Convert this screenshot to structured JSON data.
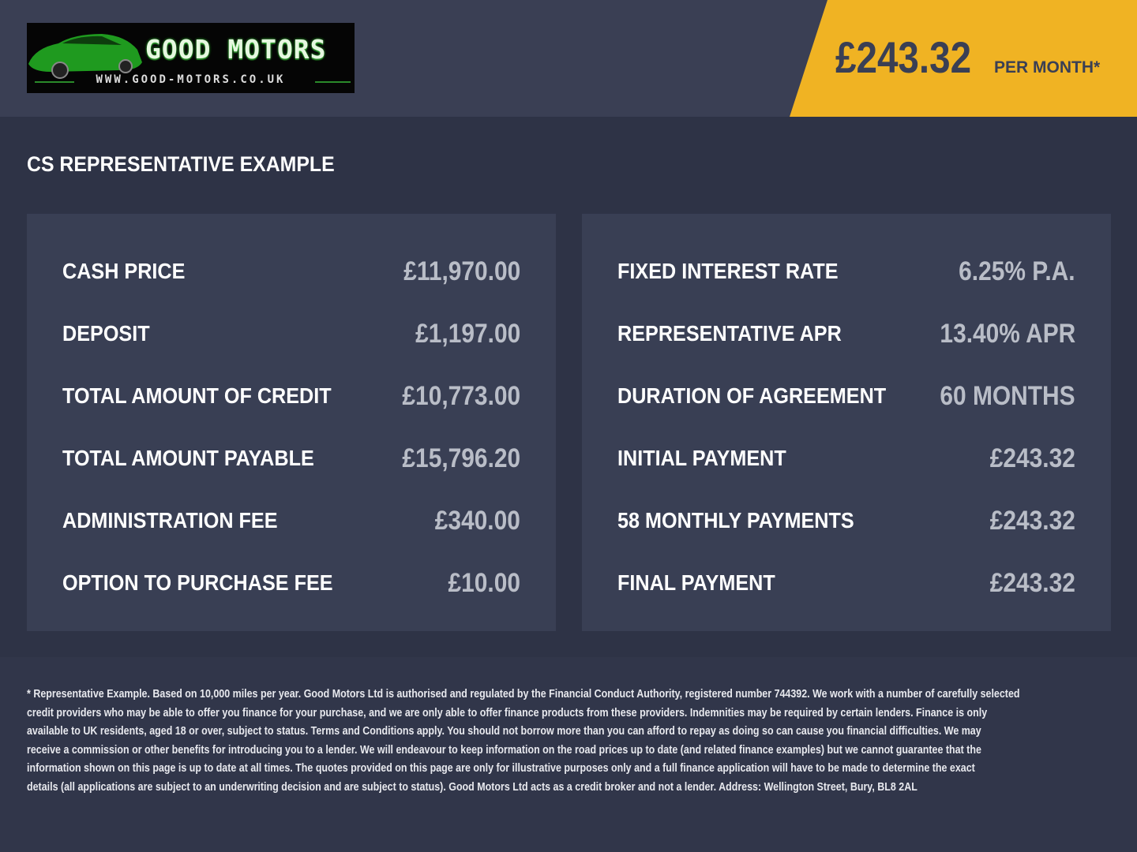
{
  "header": {
    "logo": {
      "title": "GOOD MOTORS",
      "url": "WWW.GOOD-MOTORS.CO.UK"
    },
    "banner": {
      "price": "£243.32",
      "per_month": "PER MONTH*",
      "color": "#f0b323"
    }
  },
  "section_title": "CS REPRESENTATIVE EXAMPLE",
  "left_card": [
    {
      "label": "CASH PRICE",
      "value": "£11,970.00"
    },
    {
      "label": "DEPOSIT",
      "value": "£1,197.00"
    },
    {
      "label": "TOTAL AMOUNT OF CREDIT",
      "value": "£10,773.00"
    },
    {
      "label": "TOTAL AMOUNT PAYABLE",
      "value": "£15,796.20"
    },
    {
      "label": "ADMINISTRATION FEE",
      "value": "£340.00"
    },
    {
      "label": "OPTION TO PURCHASE FEE",
      "value": "£10.00"
    }
  ],
  "right_card": [
    {
      "label": "FIXED INTEREST RATE",
      "value": "6.25% P.A."
    },
    {
      "label": "REPRESENTATIVE APR",
      "value": "13.40% APR"
    },
    {
      "label": "DURATION OF AGREEMENT",
      "value": "60 MONTHS"
    },
    {
      "label": "INITIAL PAYMENT",
      "value": "£243.32"
    },
    {
      "label": "58 MONTHLY PAYMENTS",
      "value": "£243.32"
    },
    {
      "label": "FINAL PAYMENT",
      "value": "£243.32"
    }
  ],
  "footer": {
    "disclaimer_lines": [
      "* Representative Example. Based on 10,000 miles per year. Good Motors Ltd is authorised and regulated by the Financial Conduct Authority, registered number 744392. We work with a number of carefully selected",
      "credit providers who may be able to offer you finance for your purchase, and we are only able to offer finance products from these providers. Indemnities may be required by certain lenders. Finance is only",
      "available to UK residents, aged 18 or over, subject to status. Terms and Conditions apply. You should not borrow more than you can afford to repay as doing so can cause you financial difficulties. We may",
      "receive a commission or other benefits for introducing you to a lender. We will endeavour to keep information on the road prices up to date (and related finance examples) but we cannot guarantee that the",
      "information shown on this page is up to date at all times. The quotes provided on this page are only for illustrative purposes only and a full finance application will have to be made to determine the exact",
      "details (all applications are subject to an underwriting decision and are subject to status). Good Motors Ltd acts as a credit broker and not a lender. Address: Wellington Street, Bury, BL8 2AL"
    ]
  }
}
